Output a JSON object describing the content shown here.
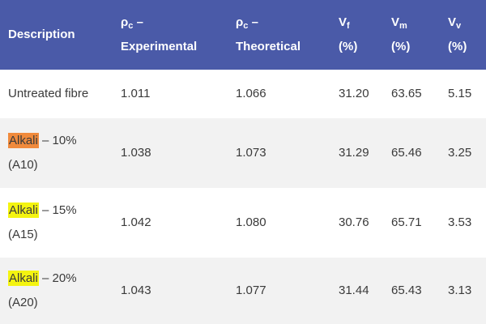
{
  "table": {
    "headers": [
      {
        "line1": "Description",
        "line2": ""
      },
      {
        "symbol": "ρ",
        "sub": "c",
        "suffix": " –",
        "line2": "Experimental"
      },
      {
        "symbol": "ρ",
        "sub": "c",
        "suffix": " –",
        "line2": "Theoretical"
      },
      {
        "symbol": "V",
        "sub": "f",
        "suffix": "",
        "line2": "(%)"
      },
      {
        "symbol": "V",
        "sub": "m",
        "suffix": "",
        "line2": "(%)"
      },
      {
        "symbol": "V",
        "sub": "v",
        "suffix": "",
        "line2": "(%)"
      }
    ],
    "rows": [
      {
        "highlight": "",
        "highlight_color": "",
        "desc_rest": "Untreated fibre",
        "desc_code": "",
        "rho_exp": "1.011",
        "rho_theo": "1.066",
        "vf": "31.20",
        "vm": "63.65",
        "vv": "5.15"
      },
      {
        "highlight": "Alkali",
        "highlight_color": "#f08a3c",
        "desc_rest": " – 10%",
        "desc_code": "(A10)",
        "rho_exp": "1.038",
        "rho_theo": "1.073",
        "vf": "31.29",
        "vm": "65.46",
        "vv": "3.25"
      },
      {
        "highlight": "Alkali",
        "highlight_color": "#f4f410",
        "desc_rest": " – 15%",
        "desc_code": "(A15)",
        "rho_exp": "1.042",
        "rho_theo": "1.080",
        "vf": "30.76",
        "vm": "65.71",
        "vv": "3.53"
      },
      {
        "highlight": "Alkali",
        "highlight_color": "#f4f410",
        "desc_rest": " – 20%",
        "desc_code": "(A20)",
        "rho_exp": "1.043",
        "rho_theo": "1.077",
        "vf": "31.44",
        "vm": "65.43",
        "vv": "3.13"
      }
    ]
  },
  "colors": {
    "header_bg": "#4a5aa8",
    "header_text": "#ffffff",
    "stripe": "#f2f2f2",
    "body_text": "#3a3a3a"
  }
}
